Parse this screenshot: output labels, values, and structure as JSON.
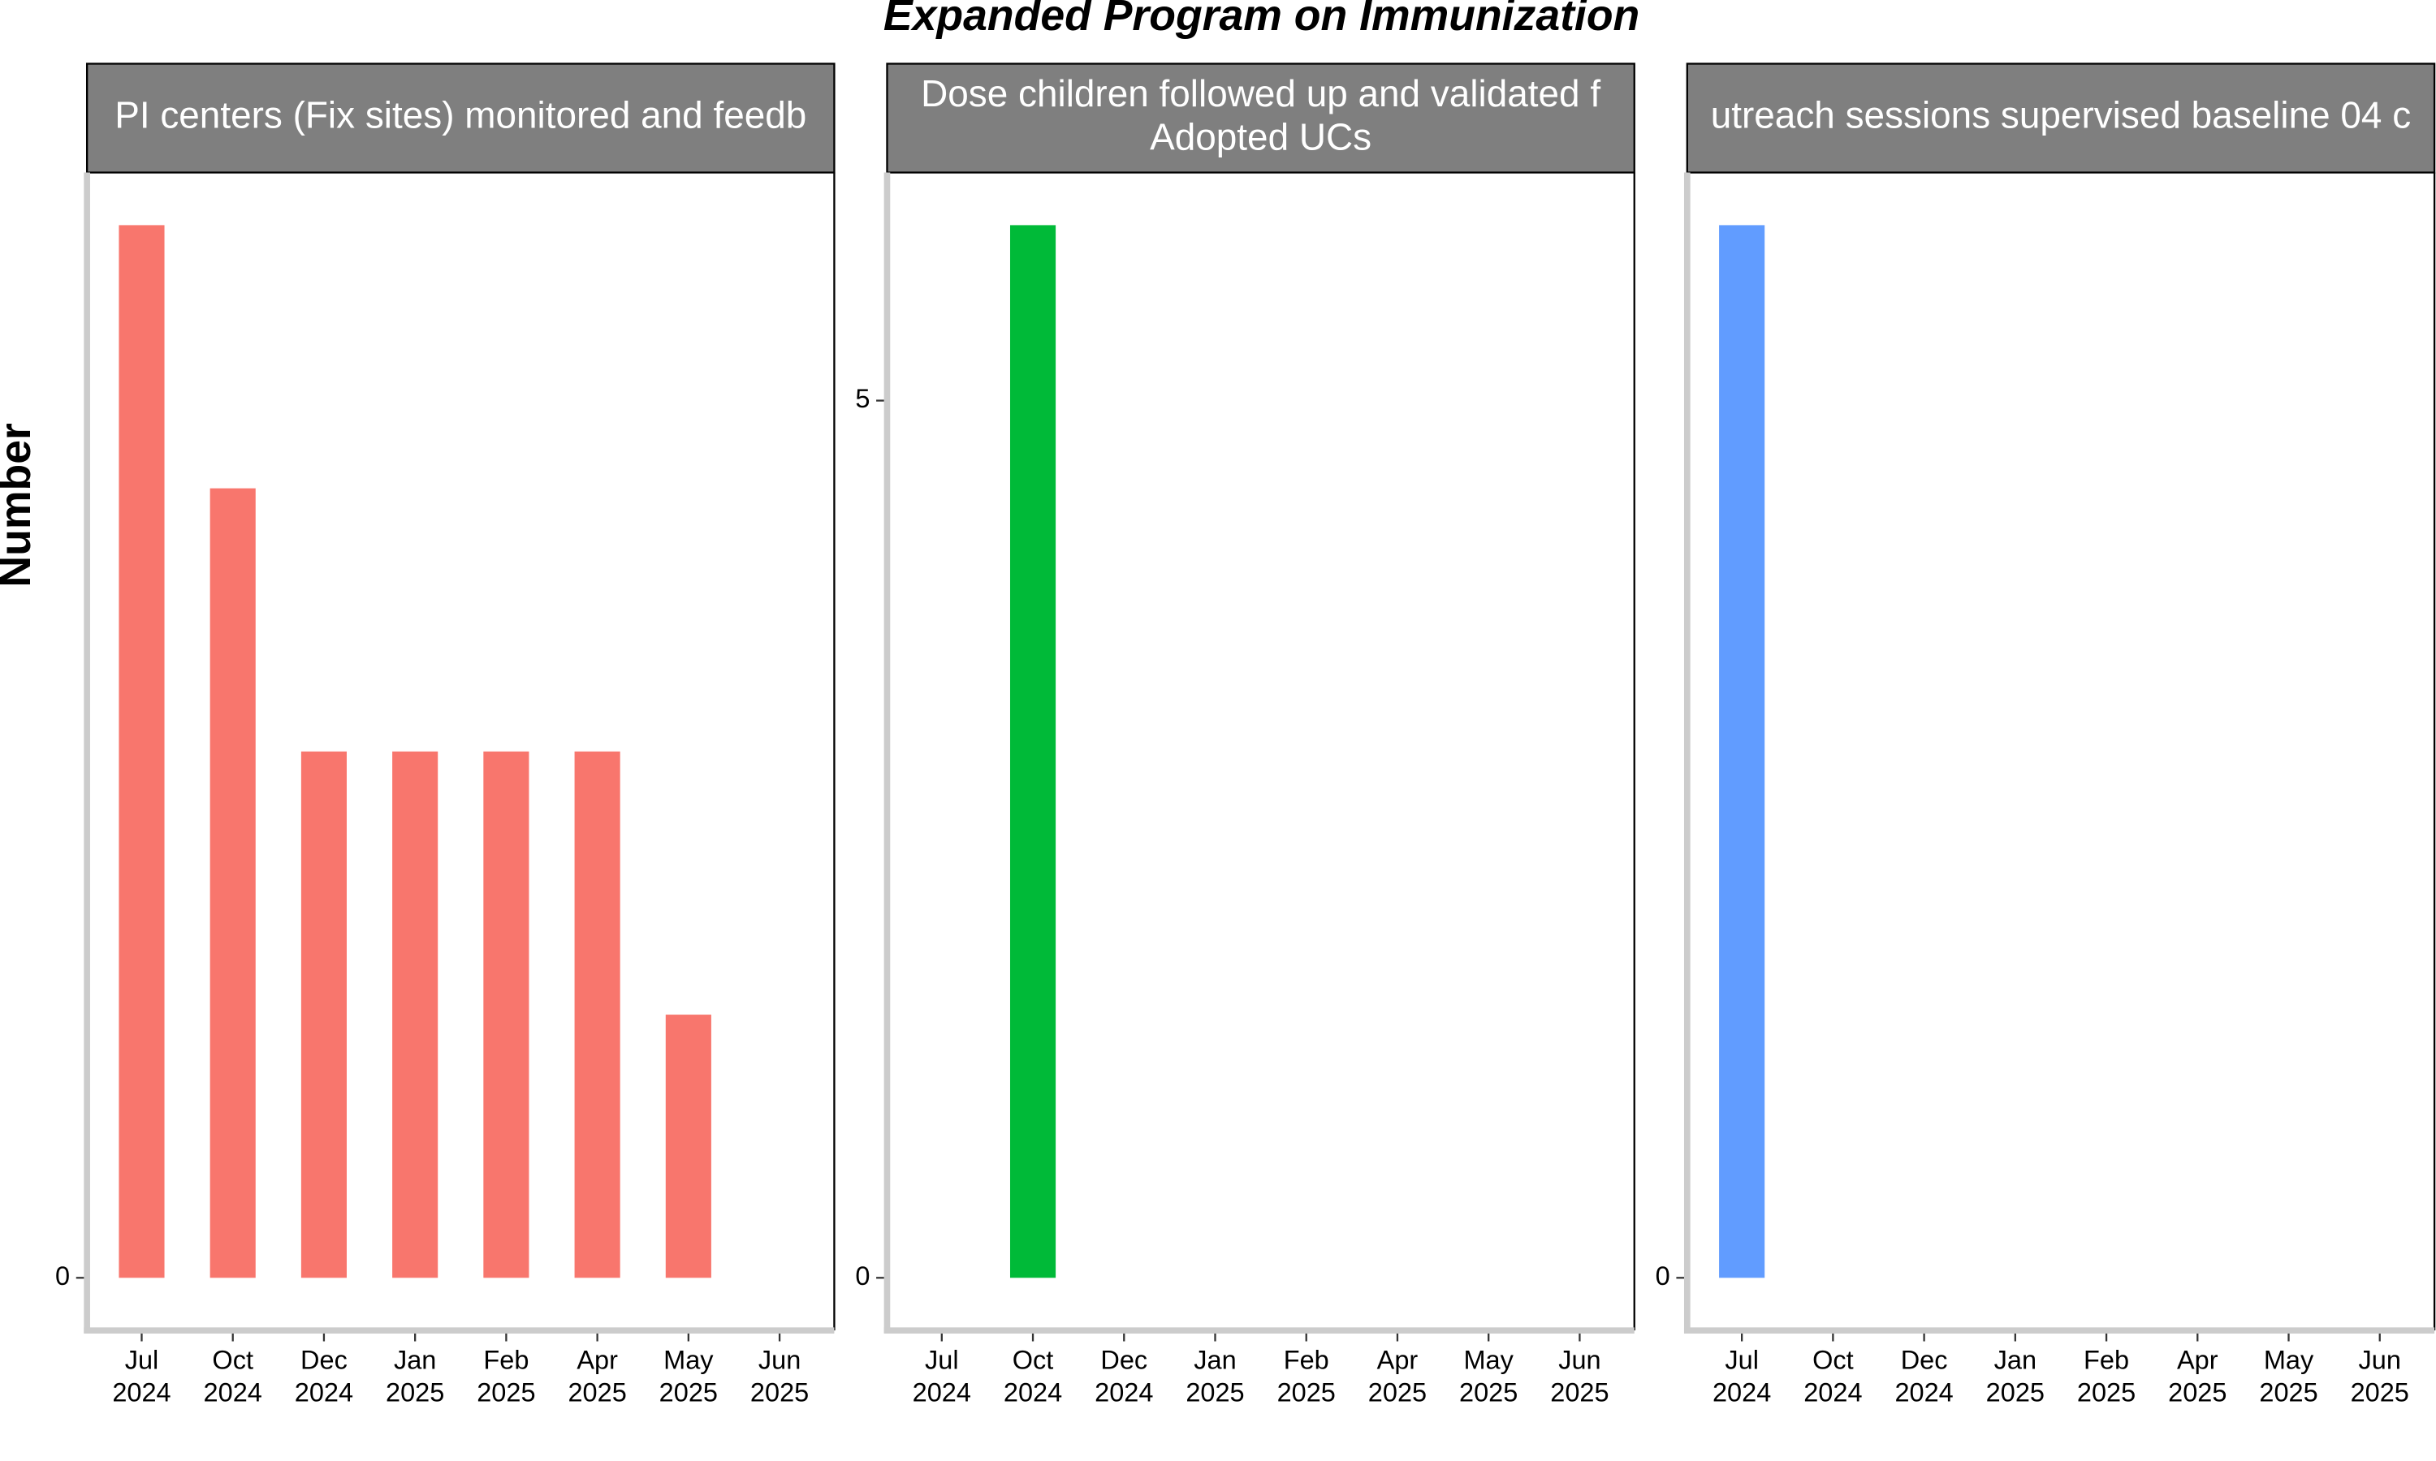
{
  "title": "Expanded Program on Immunization",
  "ylabel": "Number",
  "chart_data": [
    {
      "type": "bar",
      "title": [
        "PI centers (Fix sites) monitored and feedb"
      ],
      "categories": [
        "Jul\n2024",
        "Oct\n2024",
        "Dec\n2024",
        "Jan\n2025",
        "Feb\n2025",
        "Apr\n2025",
        "May\n2025",
        "Jun\n2025"
      ],
      "values": [
        4,
        3,
        2,
        2,
        2,
        2,
        1,
        null
      ],
      "color": "#f8766d",
      "ylim": [
        -0.2,
        4.2
      ],
      "yticks": [
        0
      ]
    },
    {
      "type": "bar",
      "title": [
        "Dose children followed up and validated f",
        "Adopted UCs"
      ],
      "categories": [
        "Jul\n2024",
        "Oct\n2024",
        "Dec\n2024",
        "Jan\n2025",
        "Feb\n2025",
        "Apr\n2025",
        "May\n2025",
        "Jun\n2025"
      ],
      "values": [
        null,
        6,
        null,
        null,
        null,
        null,
        null,
        null
      ],
      "color": "#00ba38",
      "ylim": [
        -0.3,
        6.3
      ],
      "yticks": [
        0,
        5
      ]
    },
    {
      "type": "bar",
      "title": [
        "utreach sessions supervised baseline 04 c"
      ],
      "categories": [
        "Jul\n2024",
        "Oct\n2024",
        "Dec\n2024",
        "Jan\n2025",
        "Feb\n2025",
        "Apr\n2025",
        "May\n2025",
        "Jun\n2025"
      ],
      "values": [
        1,
        null,
        null,
        null,
        null,
        null,
        null,
        null
      ],
      "color": "#619cff",
      "ylim": [
        -0.05,
        1.05
      ],
      "yticks": [
        0
      ]
    }
  ]
}
